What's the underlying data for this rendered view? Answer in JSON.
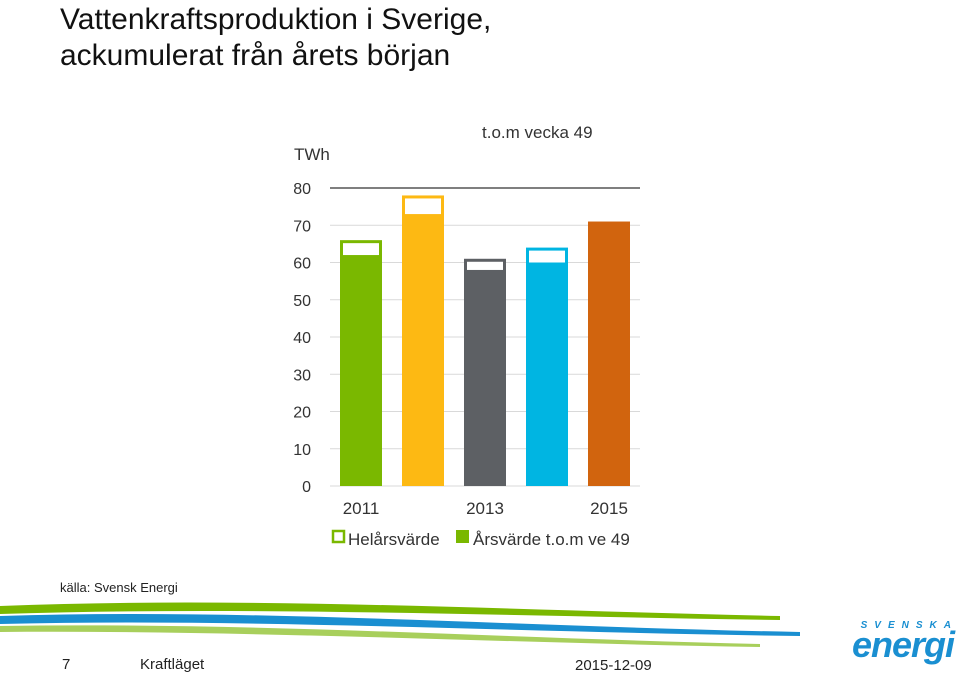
{
  "slide": {
    "title_line1": "Vattenkraftsproduktion i Sverige,",
    "title_line2": "ackumulerat från årets början",
    "source": "källa: Svensk Energi",
    "page_number": "7",
    "footer_title": "Kraftläget",
    "date": "2015-12-09",
    "logo_top": "SVENSKA",
    "logo_main": "energi"
  },
  "chart_data": {
    "type": "bar",
    "ylabel": "TWh",
    "annotation": "t.o.m vecka 49",
    "ylim": [
      0,
      80
    ],
    "yticks": [
      "0",
      "10",
      "20",
      "30",
      "40",
      "50",
      "60",
      "70",
      "80"
    ],
    "xtick_labels": [
      "2011",
      "2013",
      "2015"
    ],
    "categories": [
      "2011",
      "2012",
      "2013",
      "2014",
      "2015"
    ],
    "colors": [
      "#7ab800",
      "#fdb913",
      "#5d6064",
      "#00b5e2",
      "#d1640e"
    ],
    "series": [
      {
        "name": "Helårsvärde",
        "values": [
          66,
          78,
          61,
          64,
          null
        ]
      },
      {
        "name": "Årsvärde t.o.m ve 49",
        "values": [
          62,
          73,
          58,
          60,
          71
        ]
      }
    ],
    "legend": [
      {
        "label": "Helårsvärde",
        "style": "outline"
      },
      {
        "label": "Årsvärde t.o.m ve 49",
        "style": "filled"
      }
    ],
    "legend_color": "#7ab800"
  }
}
